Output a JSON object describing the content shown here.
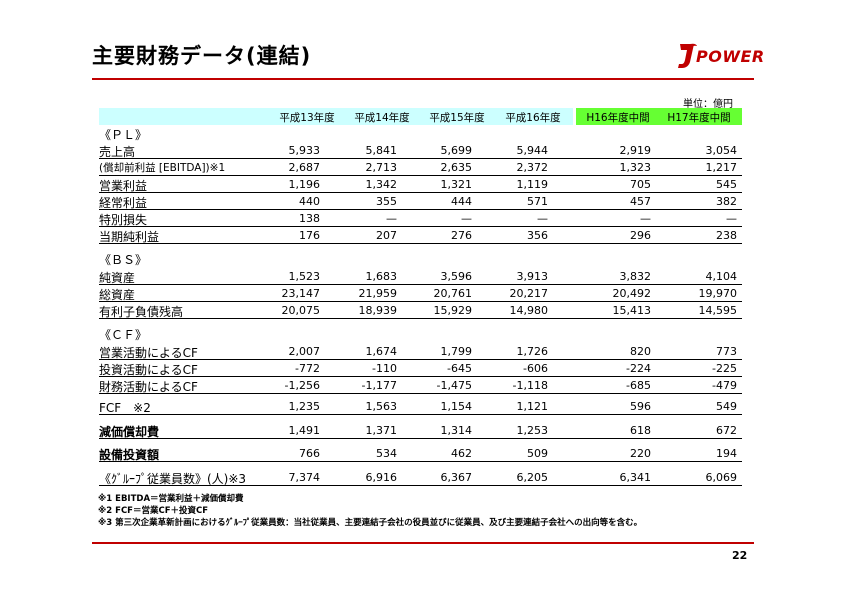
{
  "title": "主要財務データ(連結)",
  "logo": {
    "text": "POWER",
    "color": "#c00000"
  },
  "unit": "単位：億円",
  "headers": [
    "平成13年度",
    "平成14年度",
    "平成15年度",
    "平成16年度",
    "H16年度中間",
    "H17年度中間"
  ],
  "sections": {
    "pl": "《ＰＬ》",
    "bs": "《ＢＳ》",
    "cf": "《ＣＦ》"
  },
  "rows": {
    "sales": {
      "label": "売上高",
      "values": [
        "5,933",
        "5,841",
        "5,699",
        "5,944",
        "2,919",
        "3,054"
      ]
    },
    "ebitda": {
      "label": "(償却前利益 [EBITDA])※1",
      "values": [
        "2,687",
        "2,713",
        "2,635",
        "2,372",
        "1,323",
        "1,217"
      ]
    },
    "op_income": {
      "label": "営業利益",
      "values": [
        "1,196",
        "1,342",
        "1,321",
        "1,119",
        "705",
        "545"
      ]
    },
    "ord_income": {
      "label": "経常利益",
      "values": [
        "440",
        "355",
        "444",
        "571",
        "457",
        "382"
      ]
    },
    "special_loss": {
      "label": "特別損失",
      "values": [
        "138",
        "—",
        "—",
        "—",
        "—",
        "—"
      ]
    },
    "net_income": {
      "label": "当期純利益",
      "values": [
        "176",
        "207",
        "276",
        "356",
        "296",
        "238"
      ]
    },
    "net_assets": {
      "label": "純資産",
      "values": [
        "1,523",
        "1,683",
        "3,596",
        "3,913",
        "3,832",
        "4,104"
      ]
    },
    "total_assets": {
      "label": "総資産",
      "values": [
        "23,147",
        "21,959",
        "20,761",
        "20,217",
        "20,492",
        "19,970"
      ]
    },
    "debt": {
      "label": "有利子負債残高",
      "values": [
        "20,075",
        "18,939",
        "15,929",
        "14,980",
        "15,413",
        "14,595"
      ]
    },
    "cf_op": {
      "label": "営業活動によるCF",
      "values": [
        "2,007",
        "1,674",
        "1,799",
        "1,726",
        "820",
        "773"
      ]
    },
    "cf_inv": {
      "label": "投資活動によるCF",
      "values": [
        "-772",
        "-110",
        "-645",
        "-606",
        "-224",
        "-225"
      ]
    },
    "cf_fin": {
      "label": "財務活動によるCF",
      "values": [
        "-1,256",
        "-1,177",
        "-1,475",
        "-1,118",
        "-685",
        "-479"
      ]
    },
    "fcf": {
      "label": "FCF　※2",
      "values": [
        "1,235",
        "1,563",
        "1,154",
        "1,121",
        "596",
        "549"
      ]
    },
    "depr": {
      "label": "減価償却費",
      "values": [
        "1,491",
        "1,371",
        "1,314",
        "1,253",
        "618",
        "672"
      ]
    },
    "capex": {
      "label": "設備投資額",
      "values": [
        "766",
        "534",
        "462",
        "509",
        "220",
        "194"
      ]
    },
    "employees": {
      "label": "《ｸﾞﾙｰﾌﾟ従業員数》(人)※3",
      "values": [
        "7,374",
        "6,916",
        "6,367",
        "6,205",
        "6,341",
        "6,069"
      ]
    }
  },
  "notes": [
    "※1 EBITDA＝営業利益＋減価償却費",
    "※2 FCF＝営業CF＋投資CF",
    "※3 第三次企業革新計画におけるｸﾞﾙｰﾌﾟ従業員数：当社従業員、主要連結子会社の役員並びに従業員、及び主要連結子会社への出向等を含む。"
  ],
  "page_number": "22"
}
